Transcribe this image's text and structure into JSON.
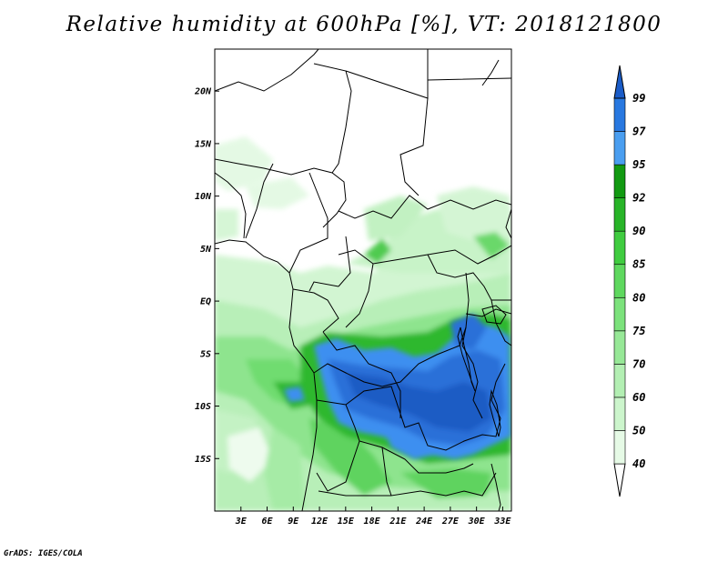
{
  "title": "Relative humidity at 600hPa [%], VT: 2018121800",
  "credit": "GrADS: IGES/COLA",
  "map": {
    "lon_range": [
      0,
      34
    ],
    "lat_range": [
      -20,
      24
    ],
    "lat_ticks": [
      "20N",
      "15N",
      "10N",
      "5N",
      "EQ",
      "5S",
      "10S",
      "15S"
    ],
    "lon_ticks": [
      "3E",
      "6E",
      "9E",
      "12E",
      "15E",
      "18E",
      "21E",
      "24E",
      "27E",
      "30E",
      "33E"
    ]
  },
  "colorbar": {
    "levels": [
      "40",
      "50",
      "60",
      "70",
      "75",
      "80",
      "85",
      "90",
      "92",
      "95",
      "97",
      "99"
    ],
    "colors": [
      "#e6fae6",
      "#ccf5cc",
      "#b3efb3",
      "#97e897",
      "#7ce27c",
      "#5fd85f",
      "#40cc40",
      "#28b428",
      "#129a12",
      "#4a9ef0",
      "#2878e0",
      "#1a5cc8"
    ]
  }
}
